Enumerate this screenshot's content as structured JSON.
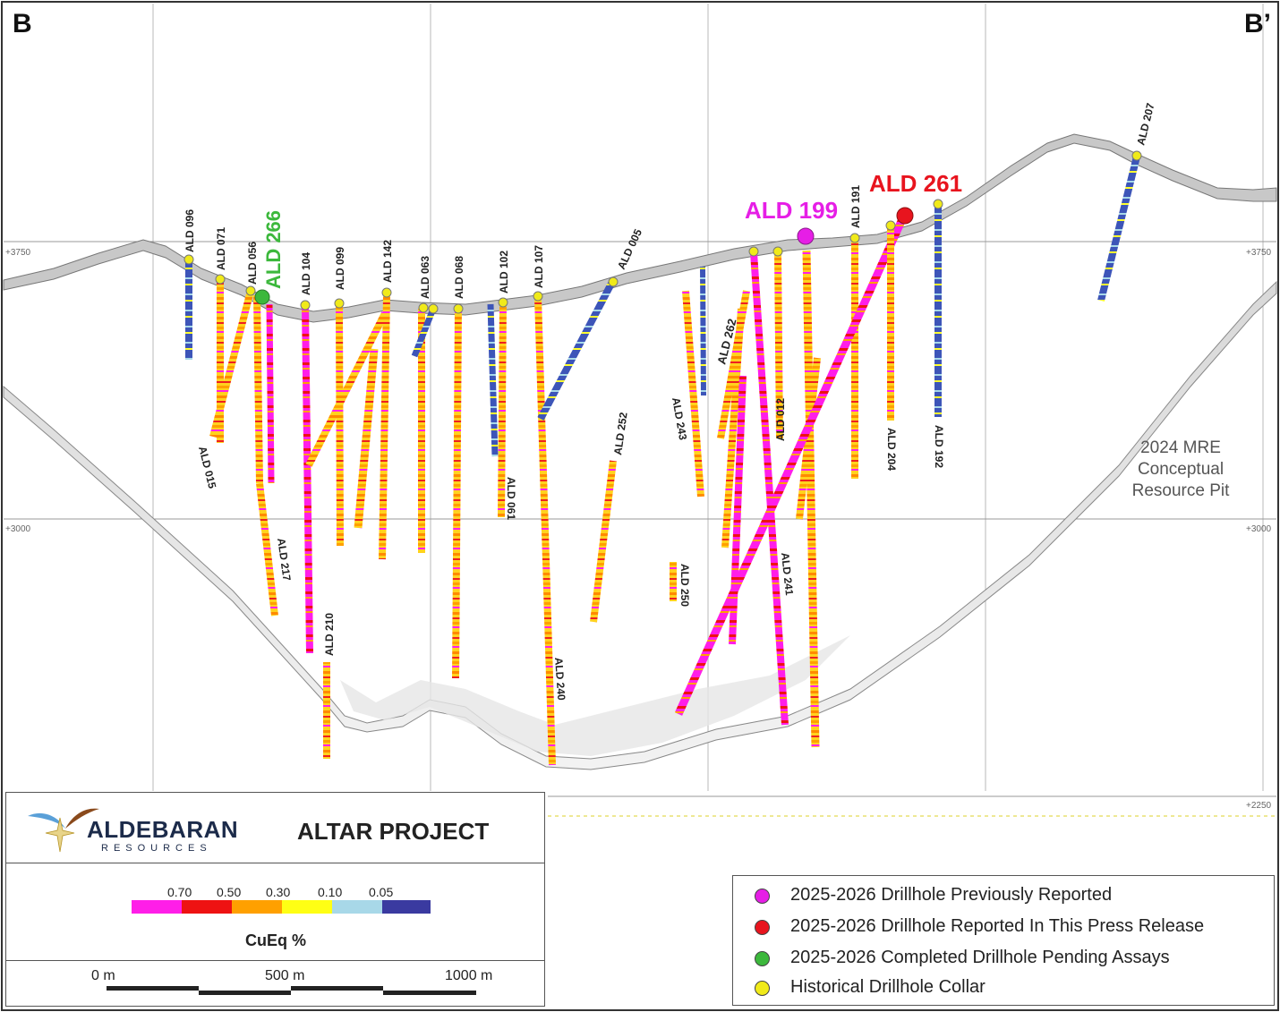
{
  "section": {
    "start_label": "B",
    "end_label": "B’",
    "elevations": [
      "+3750",
      "+3000",
      "+2250"
    ],
    "pit_label": [
      "2024 MRE",
      "Conceptual",
      "Resource Pit"
    ]
  },
  "holes": [
    {
      "id": "ALD 096"
    },
    {
      "id": "ALD 071"
    },
    {
      "id": "ALD 056"
    },
    {
      "id": "ALD 104"
    },
    {
      "id": "ALD 099"
    },
    {
      "id": "ALD 142"
    },
    {
      "id": "ALD 063"
    },
    {
      "id": "ALD 068"
    },
    {
      "id": "ALD 102"
    },
    {
      "id": "ALD 107"
    },
    {
      "id": "ALD 005"
    },
    {
      "id": "ALD 191"
    },
    {
      "id": "ALD 192"
    },
    {
      "id": "ALD 204"
    },
    {
      "id": "ALD 207"
    },
    {
      "id": "ALD 015"
    },
    {
      "id": "ALD 217"
    },
    {
      "id": "ALD 210"
    },
    {
      "id": "ALD 061"
    },
    {
      "id": "ALD 240"
    },
    {
      "id": "ALD 252"
    },
    {
      "id": "ALD 243"
    },
    {
      "id": "ALD 250"
    },
    {
      "id": "ALD 012"
    },
    {
      "id": "ALD 241"
    }
  ],
  "highlights": {
    "ald199": {
      "label": "ALD 199",
      "color": "#e61ee6"
    },
    "ald261": {
      "label": "ALD 261",
      "color": "#e8141e"
    },
    "ald266": {
      "label": "ALD 266",
      "color": "#3cb83c"
    },
    "ald262": {
      "label": "ALD 262",
      "color": "#e61ee6"
    }
  },
  "title_block": {
    "company": "ALDEBARAN",
    "company_sub": "RESOURCES",
    "project": "ALTAR PROJECT"
  },
  "colorbar": {
    "unit_label": "CuEq %",
    "thresholds": [
      "0.70",
      "0.50",
      "0.30",
      "0.10",
      "0.05"
    ],
    "colors": [
      "#ff1ee8",
      "#ee1212",
      "#ffa000",
      "#ffff14",
      "#a8d8e8",
      "#3a3aa0"
    ]
  },
  "scalebar": {
    "labels": [
      "0 m",
      "500 m",
      "1000 m"
    ]
  },
  "legend": {
    "items": [
      {
        "label": "2025-2026 Drillhole Previously Reported",
        "color": "#e61ee6"
      },
      {
        "label": "2025-2026 Drillhole Reported In This Press Release",
        "color": "#e8141e"
      },
      {
        "label": "2025-2026 Completed Drillhole Pending Assays",
        "color": "#3cb83c"
      },
      {
        "label": "Historical Drillhole Collar",
        "color": "#f0ea1a"
      }
    ]
  }
}
